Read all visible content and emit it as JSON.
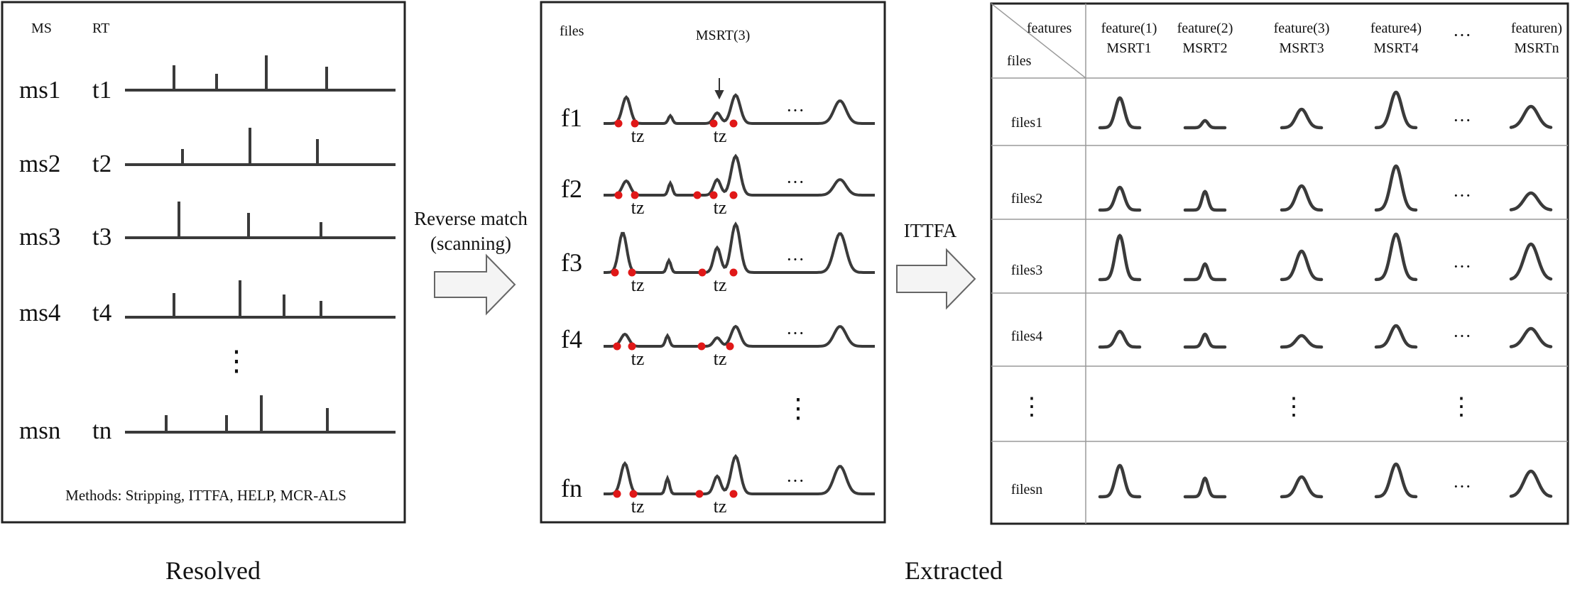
{
  "panel_left": {
    "header_ms": "MS",
    "header_rt": "RT",
    "rows": [
      {
        "ms": "ms1",
        "rt": "t1"
      },
      {
        "ms": "ms2",
        "rt": "t2"
      },
      {
        "ms": "ms3",
        "rt": "t3"
      },
      {
        "ms": "ms4",
        "rt": "t4"
      },
      {
        "ms": "msn",
        "rt": "tn"
      }
    ],
    "dots": "⋮",
    "methods": "Methods: Stripping, ITTFA, HELP, MCR-ALS"
  },
  "arrow1": {
    "line1": "Reverse match",
    "line2": "(scanning)"
  },
  "panel_middle": {
    "files_label": "files",
    "msrt_label": "MSRT(3)",
    "rows": [
      "f1",
      "f2",
      "f3",
      "f4",
      "fn"
    ],
    "tz": "tz",
    "hdots": "···",
    "vdots": "⋮"
  },
  "arrow2": {
    "label": "ITTFA"
  },
  "panel_right": {
    "corner_top": "features",
    "corner_bottom": "files",
    "columns": [
      {
        "line1": "feature(1)",
        "line2": "MSRT1"
      },
      {
        "line1": "feature(2)",
        "line2": "MSRT2"
      },
      {
        "line1": "feature(3)",
        "line2": "MSRT3"
      },
      {
        "line1": "feature4)",
        "line2": "MSRT4"
      },
      {
        "line1": "···",
        "line2": ""
      },
      {
        "line1": "featuren)",
        "line2": "MSRTn"
      }
    ],
    "rows": [
      "files1",
      "files2",
      "files3",
      "files4",
      "⋮",
      "filesn"
    ],
    "hdots": "···",
    "vdots": "⋮"
  },
  "captions": {
    "left": "Resolved",
    "right": "Extracted"
  },
  "colors": {
    "line": "#3a3a3a",
    "marker": "#e01818",
    "arrow_fill": "#f4f4f4",
    "border": "#222222",
    "grid": "#9a9a9a"
  }
}
